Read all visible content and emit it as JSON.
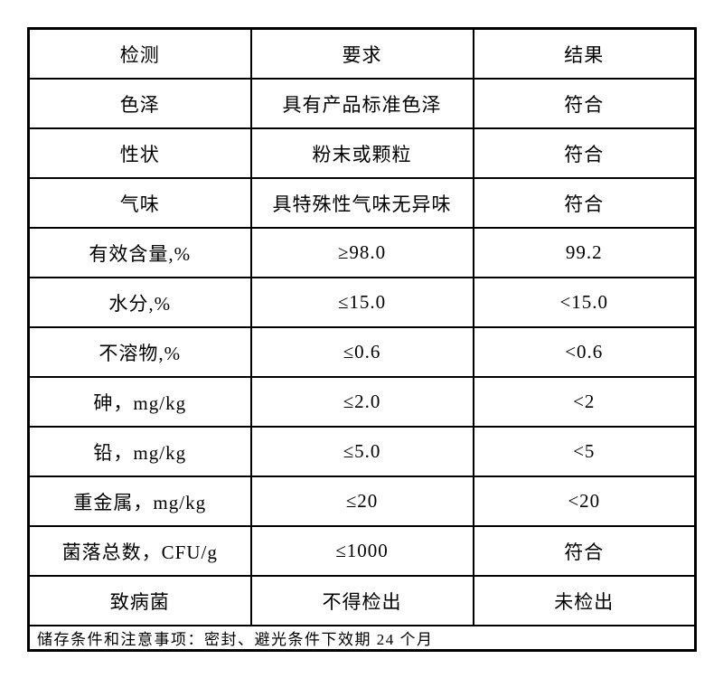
{
  "table": {
    "header": [
      "检测",
      "要求",
      "结果"
    ],
    "rows": [
      {
        "test": "色泽",
        "requirement": "具有产品标准色泽",
        "result": "符合"
      },
      {
        "test": "性状",
        "requirement": "粉末或颗粒",
        "result": "符合"
      },
      {
        "test": "气味",
        "requirement": "具特殊性气味无异味",
        "result": "符合"
      },
      {
        "test": "有效含量,%",
        "requirement": "≥98.0",
        "result": "99.2"
      },
      {
        "test": "水分,%",
        "requirement": "≤15.0",
        "result": "<15.0"
      },
      {
        "test": "不溶物,%",
        "requirement": "≤0.6",
        "result": "<0.6"
      },
      {
        "test": "砷，mg/kg",
        "requirement": "≤2.0",
        "result": "<2"
      },
      {
        "test": "铅，mg/kg",
        "requirement": "≤5.0",
        "result": "<5"
      },
      {
        "test": "重金属，mg/kg",
        "requirement": "≤20",
        "result": "<20"
      },
      {
        "test": "菌落总数，CFU/g",
        "requirement": "≤1000",
        "result": "符合"
      },
      {
        "test": "致病菌",
        "requirement": "不得检出",
        "result": "未检出"
      }
    ],
    "footer": "储存条件和注意事项：密封、避光条件下效期 24 个月"
  },
  "colors": {
    "background": "#ffffff",
    "border": "#000000",
    "text": "#000000"
  }
}
